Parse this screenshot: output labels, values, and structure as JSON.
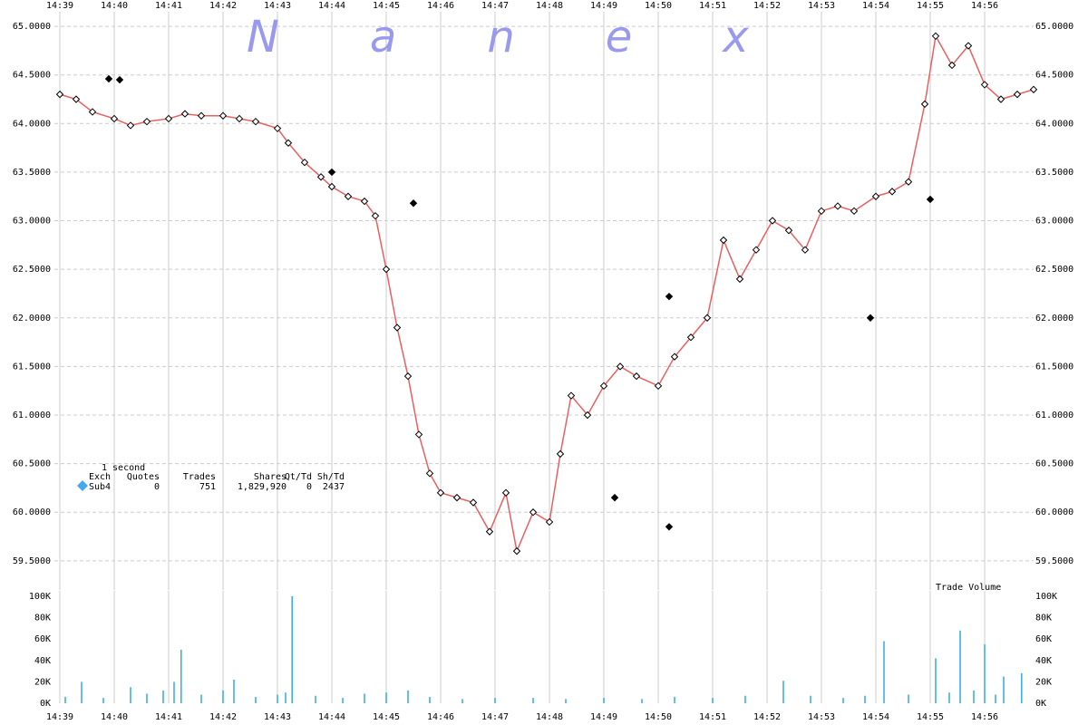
{
  "chart_data": [
    {
      "type": "line",
      "watermark": "Nanex",
      "legend_table": {
        "interval": "1 second",
        "header": [
          "Exch",
          "Quotes",
          "Trades",
          "Shares",
          "Qt/Td",
          "Sh/Td"
        ],
        "row": [
          "Sub4",
          "0",
          "751",
          "1,829,920",
          "0",
          "2437"
        ]
      },
      "xlim": [
        878.9,
        896.9
      ],
      "xticks": [
        {
          "value": 879,
          "label": "14:39"
        },
        {
          "value": 880,
          "label": "14:40"
        },
        {
          "value": 881,
          "label": "14:41"
        },
        {
          "value": 882,
          "label": "14:42"
        },
        {
          "value": 883,
          "label": "14:43"
        },
        {
          "value": 884,
          "label": "14:44"
        },
        {
          "value": 885,
          "label": "14:45"
        },
        {
          "value": 886,
          "label": "14:46"
        },
        {
          "value": 887,
          "label": "14:47"
        },
        {
          "value": 888,
          "label": "14:48"
        },
        {
          "value": 889,
          "label": "14:49"
        },
        {
          "value": 890,
          "label": "14:50"
        },
        {
          "value": 891,
          "label": "14:51"
        },
        {
          "value": 892,
          "label": "14:52"
        },
        {
          "value": 893,
          "label": "14:53"
        },
        {
          "value": 894,
          "label": "14:54"
        },
        {
          "value": 895,
          "label": "14:55"
        },
        {
          "value": 896,
          "label": "14:56"
        }
      ],
      "ylim": [
        59.2,
        65.15
      ],
      "yticks": [
        {
          "value": 59.5,
          "label": "59.5000"
        },
        {
          "value": 60,
          "label": "60.0000"
        },
        {
          "value": 60.5,
          "label": "60.5000"
        },
        {
          "value": 61,
          "label": "61.0000"
        },
        {
          "value": 61.5,
          "label": "61.5000"
        },
        {
          "value": 62,
          "label": "62.0000"
        },
        {
          "value": 62.5,
          "label": "62.5000"
        },
        {
          "value": 63,
          "label": "63.0000"
        },
        {
          "value": 63.5,
          "label": "63.5000"
        },
        {
          "value": 64,
          "label": "64.0000"
        },
        {
          "value": 64.5,
          "label": "64.5000"
        },
        {
          "value": 65,
          "label": "65.0000"
        }
      ],
      "grid": true,
      "series": [
        {
          "color": "#e86060",
          "marker": "diamond",
          "marker_color": "#ffffff",
          "x": [
            879.0,
            879.3,
            879.6,
            880.0,
            880.3,
            880.6,
            881.0,
            881.3,
            881.6,
            882.0,
            882.3,
            882.6,
            883.0,
            883.2,
            883.5,
            883.8,
            884.0,
            884.3,
            884.6,
            884.8,
            885.0,
            885.2,
            885.4,
            885.6,
            885.8,
            886.0,
            886.3,
            886.6,
            886.9,
            887.2,
            887.4,
            887.7,
            888.0,
            888.2,
            888.4,
            888.7,
            889.0,
            889.3,
            889.6,
            890.0,
            890.3,
            890.6,
            890.9,
            891.2,
            891.5,
            891.8,
            892.1,
            892.4,
            892.7,
            893.0,
            893.3,
            893.6,
            894.0,
            894.3,
            894.6,
            894.9,
            895.1,
            895.4,
            895.7,
            896.0,
            896.3,
            896.6,
            896.9
          ],
          "values": [
            64.3,
            64.25,
            64.12,
            64.05,
            63.98,
            64.02,
            64.05,
            64.1,
            64.08,
            64.08,
            64.05,
            64.02,
            63.95,
            63.8,
            63.6,
            63.45,
            63.35,
            63.25,
            63.2,
            63.05,
            62.5,
            61.9,
            61.4,
            60.8,
            60.4,
            60.2,
            60.15,
            60.1,
            59.8,
            60.2,
            59.6,
            60.0,
            59.9,
            60.6,
            61.2,
            61.0,
            61.3,
            61.5,
            61.4,
            61.3,
            61.6,
            61.8,
            62.0,
            62.8,
            62.4,
            62.7,
            63.0,
            62.9,
            62.7,
            63.1,
            63.15,
            63.1,
            63.25,
            63.3,
            63.4,
            64.2,
            64.9,
            64.6,
            64.8,
            64.4,
            64.25,
            64.3,
            64.35
          ]
        },
        {
          "color": "#000000",
          "marker": "diamond",
          "x": [
            879.9,
            880.1,
            884.0,
            885.5,
            889.2,
            890.2,
            890.2,
            893.9,
            895.0
          ],
          "values": [
            64.46,
            64.45,
            63.5,
            63.18,
            60.15,
            62.22,
            59.85,
            62.0,
            63.22
          ]
        }
      ]
    },
    {
      "type": "bar",
      "title": "Trade Volume",
      "xlim": [
        878.9,
        896.9
      ],
      "xticks": [
        {
          "value": 879,
          "label": "14:39"
        },
        {
          "value": 880,
          "label": "14:40"
        },
        {
          "value": 881,
          "label": "14:41"
        },
        {
          "value": 882,
          "label": "14:42"
        },
        {
          "value": 883,
          "label": "14:43"
        },
        {
          "value": 884,
          "label": "14:44"
        },
        {
          "value": 885,
          "label": "14:45"
        },
        {
          "value": 886,
          "label": "14:46"
        },
        {
          "value": 887,
          "label": "14:47"
        },
        {
          "value": 888,
          "label": "14:48"
        },
        {
          "value": 889,
          "label": "14:49"
        },
        {
          "value": 890,
          "label": "14:50"
        },
        {
          "value": 891,
          "label": "14:51"
        },
        {
          "value": 892,
          "label": "14:52"
        },
        {
          "value": 893,
          "label": "14:53"
        },
        {
          "value": 894,
          "label": "14:54"
        },
        {
          "value": 895,
          "label": "14:55"
        },
        {
          "value": 896,
          "label": "14:56"
        }
      ],
      "ylim": [
        0,
        105000
      ],
      "yticks": [
        {
          "value": 0,
          "label": "0K"
        },
        {
          "value": 20000,
          "label": "20K"
        },
        {
          "value": 40000,
          "label": "40K"
        },
        {
          "value": 60000,
          "label": "60K"
        },
        {
          "value": 80000,
          "label": "80K"
        },
        {
          "value": 100000,
          "label": "100K"
        }
      ],
      "color": "#33aadd",
      "x": [
        879.1,
        879.4,
        879.8,
        880.3,
        880.6,
        880.9,
        881.1,
        881.23,
        881.6,
        882.0,
        882.2,
        882.6,
        883.0,
        883.15,
        883.27,
        883.7,
        884.2,
        884.6,
        885.0,
        885.4,
        885.8,
        886.4,
        887.0,
        887.7,
        888.3,
        889.0,
        889.7,
        890.3,
        891.0,
        891.6,
        892.3,
        892.8,
        893.4,
        893.8,
        894.15,
        894.6,
        895.1,
        895.35,
        895.55,
        895.8,
        896.0,
        896.2,
        896.35,
        896.68
      ],
      "values": [
        6000,
        20000,
        5000,
        15000,
        9000,
        12000,
        20000,
        50000,
        8000,
        12000,
        22000,
        6000,
        8000,
        10000,
        100000,
        7000,
        5000,
        9000,
        10000,
        12000,
        6000,
        4000,
        5000,
        5000,
        4000,
        5000,
        4000,
        6000,
        5000,
        7000,
        21000,
        7000,
        5000,
        7000,
        58000,
        8000,
        42000,
        10000,
        68000,
        12000,
        55000,
        8000,
        25000,
        28000
      ]
    }
  ]
}
